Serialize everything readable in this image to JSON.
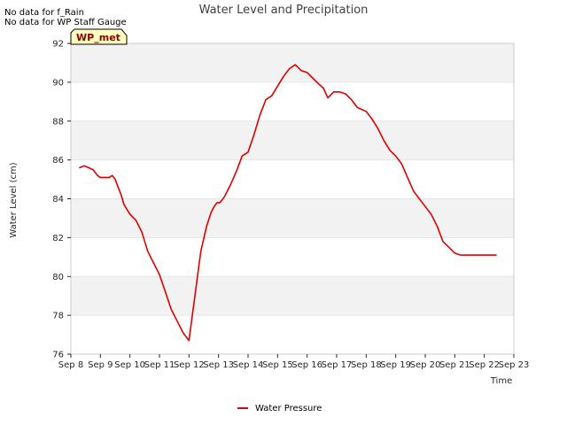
{
  "notes": [
    "No data for f_Rain",
    "No data for WP Staff Gauge"
  ],
  "badge": {
    "label": "WP_met",
    "fill": "#ffffc0",
    "text_color": "#8b0000"
  },
  "chart_data": {
    "type": "line",
    "title": "Water Level and Precipitation",
    "xlabel": "Time",
    "ylabel": "Water Level (cm)",
    "ylim": [
      76,
      92
    ],
    "yticks": [
      76,
      78,
      80,
      82,
      84,
      86,
      88,
      90,
      92
    ],
    "xlim": [
      0,
      15
    ],
    "xtick_labels": [
      "Sep 8",
      "Sep 9",
      "Sep 10",
      "Sep 11",
      "Sep 12",
      "Sep 13",
      "Sep 14",
      "Sep 15",
      "Sep 16",
      "Sep 17",
      "Sep 18",
      "Sep 19",
      "Sep 20",
      "Sep 21",
      "Sep 22",
      "Sep 23"
    ],
    "grid": "horizontal bands",
    "band_color": "#f2f2f2",
    "legend_position": "bottom-center",
    "series": [
      {
        "name": "Water Pressure",
        "color": "#dd0000",
        "x": [
          0.3,
          0.45,
          0.6,
          0.75,
          0.9,
          1.0,
          1.3,
          1.4,
          1.5,
          1.6,
          1.7,
          1.8,
          2.0,
          2.2,
          2.4,
          2.6,
          2.8,
          3.0,
          3.2,
          3.4,
          3.6,
          3.8,
          4.0,
          4.2,
          4.4,
          4.6,
          4.75,
          4.85,
          4.95,
          5.05,
          5.2,
          5.4,
          5.6,
          5.8,
          6.0,
          6.2,
          6.4,
          6.6,
          6.8,
          7.0,
          7.2,
          7.4,
          7.6,
          7.8,
          8.0,
          8.2,
          8.4,
          8.55,
          8.7,
          8.9,
          9.1,
          9.3,
          9.5,
          9.7,
          9.85,
          10.0,
          10.2,
          10.4,
          10.6,
          10.8,
          11.0,
          11.2,
          11.4,
          11.6,
          11.8,
          12.0,
          12.2,
          12.4,
          12.6,
          12.8,
          13.0,
          13.2,
          13.4,
          13.6,
          13.8,
          14.0,
          14.2,
          14.4
        ],
        "y": [
          85.6,
          85.7,
          85.6,
          85.5,
          85.2,
          85.1,
          85.1,
          85.2,
          85.0,
          84.6,
          84.2,
          83.7,
          83.2,
          82.9,
          82.3,
          81.3,
          80.7,
          80.1,
          79.2,
          78.3,
          77.7,
          77.1,
          76.7,
          79.0,
          81.3,
          82.6,
          83.3,
          83.6,
          83.8,
          83.8,
          84.1,
          84.7,
          85.4,
          86.2,
          86.4,
          87.3,
          88.3,
          89.1,
          89.3,
          89.8,
          90.3,
          90.7,
          90.9,
          90.6,
          90.5,
          90.2,
          89.9,
          89.7,
          89.2,
          89.5,
          89.5,
          89.4,
          89.1,
          88.7,
          88.6,
          88.5,
          88.1,
          87.6,
          87.0,
          86.5,
          86.2,
          85.8,
          85.1,
          84.4,
          84.0,
          83.6,
          83.2,
          82.6,
          81.8,
          81.5,
          81.2,
          81.1,
          81.1,
          81.1,
          81.1,
          81.1,
          81.1,
          81.1
        ]
      }
    ]
  }
}
